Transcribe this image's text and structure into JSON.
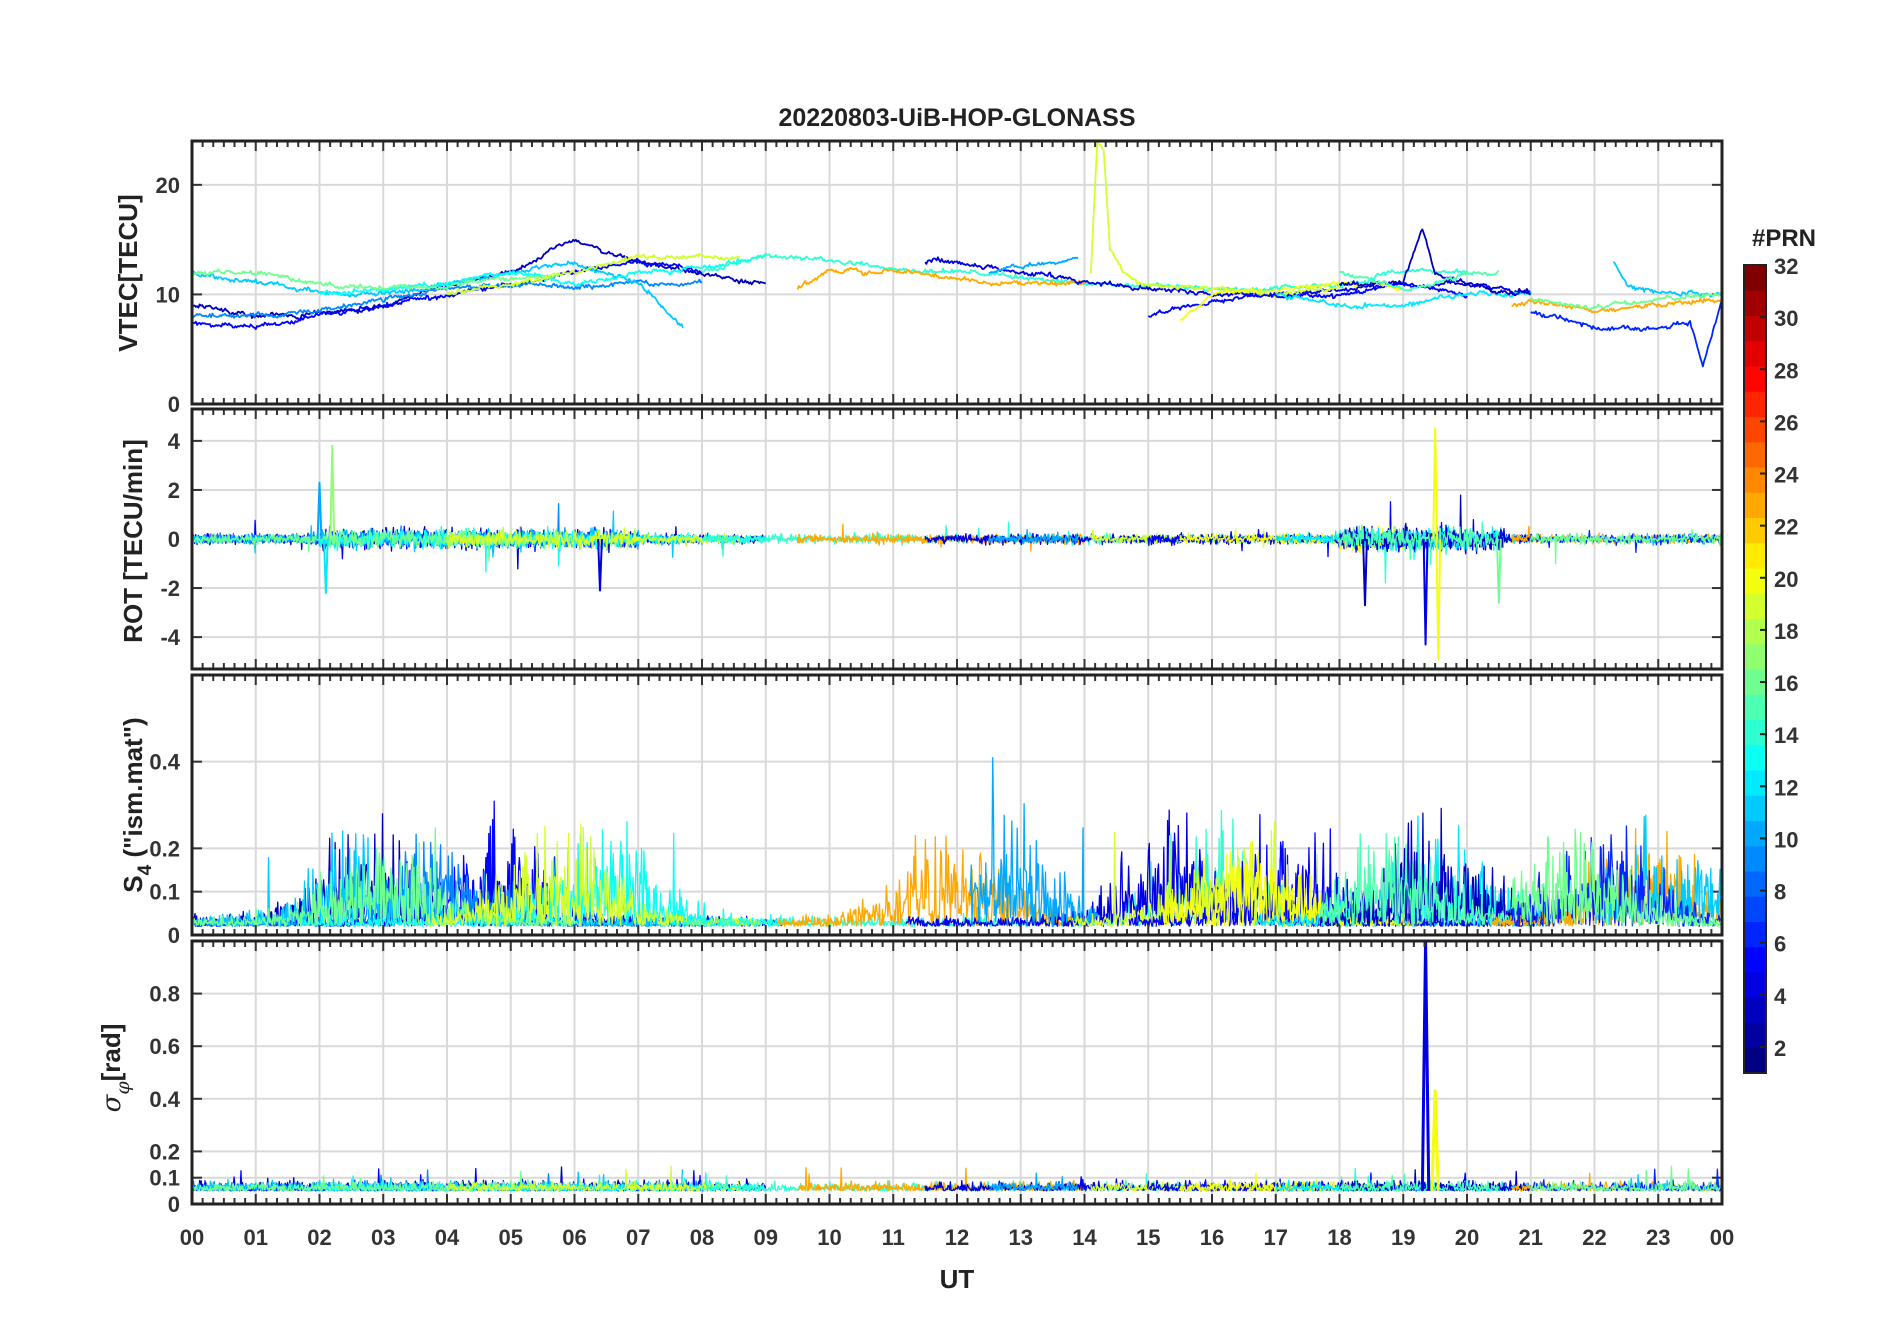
{
  "chart_data": {
    "type": "line",
    "title": "20220803-UiB-HOP-GLONASS",
    "xlabel": "UT",
    "x_ticks": [
      "00",
      "01",
      "02",
      "03",
      "04",
      "05",
      "06",
      "07",
      "08",
      "09",
      "10",
      "11",
      "12",
      "13",
      "14",
      "15",
      "16",
      "17",
      "18",
      "19",
      "20",
      "21",
      "22",
      "23",
      "00"
    ],
    "xlim": [
      0,
      24
    ],
    "grid": true,
    "colorbar": {
      "title": "#PRN",
      "range": [
        1,
        32
      ],
      "ticks": [
        "2",
        "4",
        "6",
        "8",
        "10",
        "12",
        "14",
        "16",
        "18",
        "20",
        "22",
        "24",
        "26",
        "28",
        "30",
        "32"
      ],
      "colormap": "jet"
    },
    "panels": [
      {
        "id": "vtec",
        "ylabel": "VTEC[TECU]",
        "ylim": [
          0,
          24
        ],
        "yticks": [
          "0",
          "10",
          "20"
        ],
        "series": [
          {
            "prn": 3,
            "x": [
              0,
              1,
              2,
              3,
              4,
              5,
              6,
              6.5,
              7,
              8,
              9
            ],
            "y": [
              9,
              8,
              8,
              9,
              11,
              12,
              15,
              14,
              13,
              12,
              11
            ]
          },
          {
            "prn": 5,
            "x": [
              0,
              1,
              2,
              3,
              4,
              5,
              6,
              7,
              8
            ],
            "y": [
              7.5,
              7,
              8,
              9,
              10,
              11,
              12,
              13,
              12
            ]
          },
          {
            "prn": 9,
            "x": [
              0,
              1,
              2,
              3,
              4,
              5,
              6,
              7,
              8
            ],
            "y": [
              8,
              8,
              8.5,
              9.5,
              10.5,
              11,
              10.5,
              11,
              11
            ]
          },
          {
            "prn": 11,
            "x": [
              0,
              1,
              2,
              3,
              4,
              5,
              6,
              7,
              7.7
            ],
            "y": [
              12,
              11,
              10,
              10,
              11,
              12,
              13,
              11,
              7
            ]
          },
          {
            "prn": 13,
            "x": [
              2,
              3,
              4,
              5,
              6,
              7,
              8,
              9
            ],
            "y": [
              10,
              10.5,
              11,
              12,
              11,
              12,
              12.5,
              13.5
            ]
          },
          {
            "prn": 16,
            "x": [
              0,
              1,
              2,
              3,
              4,
              5,
              5.8
            ],
            "y": [
              12,
              12,
              11,
              10.5,
              11,
              11.5,
              12
            ]
          },
          {
            "prn": 19,
            "x": [
              4,
              5,
              6,
              7,
              8,
              8.6
            ],
            "y": [
              10,
              11,
              12,
              13.5,
              13.5,
              13.5
            ]
          },
          {
            "prn": 14,
            "x": [
              8,
              9,
              10,
              11,
              12,
              13,
              14,
              15,
              16,
              17,
              18,
              19,
              20
            ],
            "y": [
              12,
              13.5,
              13,
              12.5,
              12,
              11.5,
              11,
              11,
              10.5,
              10.5,
              11,
              12,
              12
            ]
          },
          {
            "prn": 23,
            "x": [
              9.5,
              10,
              11,
              12,
              13,
              14
            ],
            "y": [
              10.5,
              12,
              12,
              11.5,
              11,
              11
            ]
          },
          {
            "prn": 4,
            "x": [
              11.5,
              12,
              13,
              14,
              15,
              16,
              17,
              18,
              19,
              20,
              21
            ],
            "y": [
              13,
              13,
              12,
              11,
              10.5,
              10,
              10,
              10.5,
              11,
              11,
              10
            ]
          },
          {
            "prn": 10,
            "x": [
              12.5,
              13,
              13.5,
              13.9
            ],
            "y": [
              12,
              12.5,
              13,
              13.5
            ]
          },
          {
            "prn": 19,
            "x": [
              14.1,
              14.2,
              14.3,
              14.4,
              14.6,
              15,
              16,
              17,
              18
            ],
            "y": [
              12,
              24,
              23,
              14,
              12,
              11,
              10.5,
              10,
              10.5
            ]
          },
          {
            "prn": 5,
            "x": [
              15,
              16,
              17,
              18,
              19,
              20
            ],
            "y": [
              8,
              9.5,
              10,
              10,
              11,
              10
            ]
          },
          {
            "prn": 20,
            "x": [
              15.5,
              16,
              17,
              18,
              19
            ],
            "y": [
              7.5,
              10,
              10.5,
              11,
              10.5
            ]
          },
          {
            "prn": 12,
            "x": [
              17,
              18,
              19,
              20,
              21
            ],
            "y": [
              10,
              9,
              9,
              10,
              10
            ]
          },
          {
            "prn": 3,
            "x": [
              18,
              19,
              19.3,
              19.5,
              20,
              21
            ],
            "y": [
              11,
              11,
              16,
              12,
              11,
              10
            ]
          },
          {
            "prn": 15,
            "x": [
              18,
              19,
              19.5,
              20,
              20.5
            ],
            "y": [
              12,
              10.5,
              11,
              12,
              12
            ]
          },
          {
            "prn": 23,
            "x": [
              20.7,
              21,
              22,
              23,
              24
            ],
            "y": [
              9,
              9.5,
              8.5,
              9,
              9.5
            ]
          },
          {
            "prn": 11,
            "x": [
              22.3,
              22.5,
              23,
              24
            ],
            "y": [
              13,
              11,
              10,
              10
            ]
          },
          {
            "prn": 6,
            "x": [
              21,
              22,
              23,
              23.5,
              23.7,
              24
            ],
            "y": [
              8.5,
              7,
              7,
              7.5,
              3.5,
              9.5
            ]
          },
          {
            "prn": 16,
            "x": [
              21,
              22,
              23,
              24
            ],
            "y": [
              9.5,
              9,
              9.5,
              10
            ]
          }
        ]
      },
      {
        "id": "rot",
        "ylabel": "ROT [TECU/min]",
        "ylim": [
          -5.3,
          5.3
        ],
        "yticks": [
          "-4",
          "-2",
          "0",
          "2",
          "4"
        ],
        "events": [
          {
            "prn": 17,
            "x": 2.2,
            "y": 3.8
          },
          {
            "prn": 10,
            "x": 2.0,
            "y": 2.3
          },
          {
            "prn": 12,
            "x": 2.1,
            "y": -2.2
          },
          {
            "prn": 4,
            "x": 6.4,
            "y": -2.1
          },
          {
            "prn": 3,
            "x": 18.4,
            "y": -2.7
          },
          {
            "prn": 4,
            "x": 19.35,
            "y": -4.3
          },
          {
            "prn": 20,
            "x": 19.5,
            "y": 4.5
          },
          {
            "prn": 20,
            "x": 19.55,
            "y": -4.9
          },
          {
            "prn": 16,
            "x": 20.5,
            "y": -2.6
          }
        ]
      },
      {
        "id": "s4",
        "ylabel": "S4 (\"ism.mat\")",
        "ylim": [
          0,
          0.6
        ],
        "yticks": [
          "0",
          "0.1",
          "0.2",
          "0.4"
        ]
      },
      {
        "id": "sigma",
        "ylabel": "σφ[rad]",
        "ylim": [
          0,
          1
        ],
        "yticks": [
          "0",
          "0.1",
          "0.2",
          "0.4",
          "0.6",
          "0.8"
        ],
        "events": [
          {
            "prn": 4,
            "x": 19.35,
            "y": 1.0
          },
          {
            "prn": 20,
            "x": 19.5,
            "y": 0.43
          }
        ]
      }
    ]
  }
}
